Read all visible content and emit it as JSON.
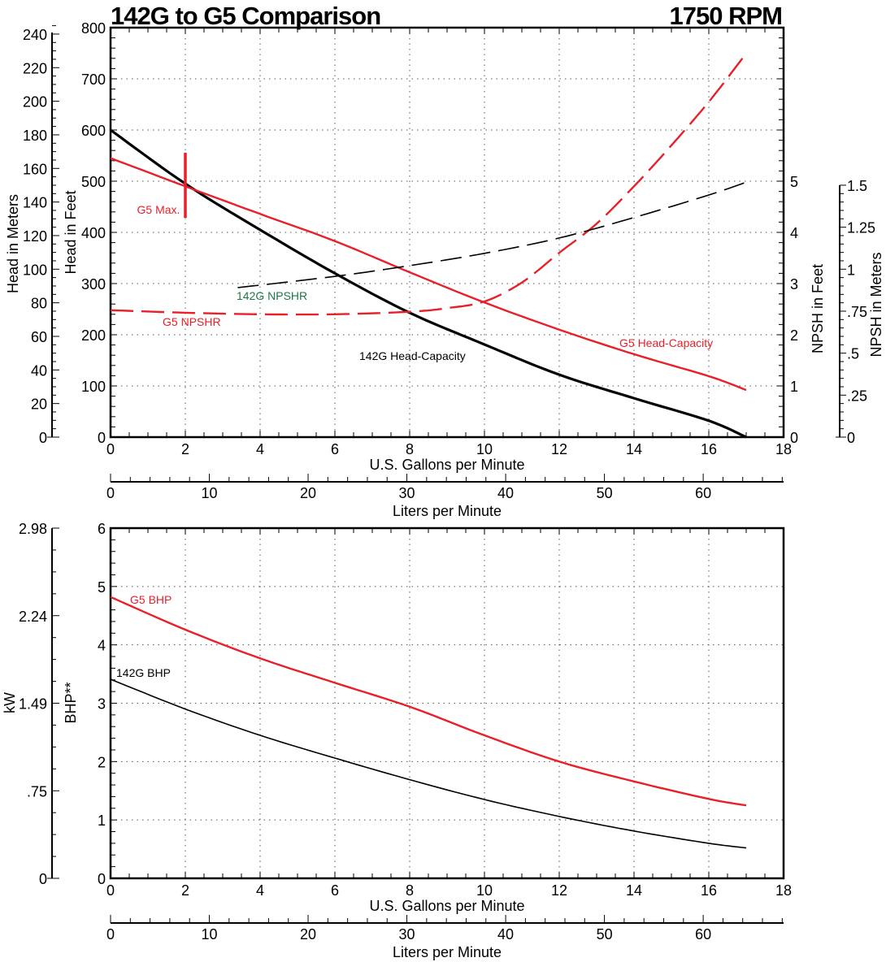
{
  "colors": {
    "g5": "#e8202a",
    "g142": "#000000",
    "npshr142": "#1a7a4a"
  },
  "chart_data": [
    {
      "type": "line",
      "title": "142G to G5 Comparison",
      "subtitle": "1750 RPM",
      "grid": true,
      "x_axis": {
        "label": "U.S. Gallons per Minute",
        "range": [
          0,
          18
        ],
        "tick_labels": [
          "0",
          "2",
          "4",
          "6",
          "8",
          "10",
          "12",
          "14",
          "16",
          "18"
        ]
      },
      "x2_axis": {
        "label": "Liters per Minute",
        "tick_labels": [
          "0",
          "10",
          "20",
          "30",
          "40",
          "50",
          "60"
        ]
      },
      "y_axis": {
        "label": "Head in Feet",
        "range": [
          0,
          800
        ],
        "tick_labels": [
          "0",
          "100",
          "200",
          "300",
          "400",
          "500",
          "600",
          "700",
          "800"
        ]
      },
      "y_meters_axis": {
        "label": "Head in Meters",
        "tick_labels": [
          "0",
          "20",
          "40",
          "60",
          "80",
          "100",
          "120",
          "140",
          "160",
          "180",
          "200",
          "220",
          "240"
        ]
      },
      "y_npsh_feet_axis": {
        "label": "NPSH in Feet",
        "range": [
          0,
          8
        ],
        "tick_labels": [
          "0",
          "1",
          "2",
          "3",
          "4",
          "5"
        ]
      },
      "y_npsh_meters_axis": {
        "label": "NPSH in Meters",
        "tick_labels": [
          "0",
          ".25",
          ".5",
          ".75",
          "1",
          "1.25",
          "1.5"
        ]
      },
      "series": [
        {
          "name": "142G Head-Capacity",
          "axis": "head_ft",
          "style": "solid-thick",
          "color_key": "g142",
          "x": [
            0,
            2,
            4,
            6,
            8,
            10,
            12,
            14,
            16,
            17
          ],
          "y": [
            600,
            495,
            405,
            320,
            243,
            181,
            122,
            76,
            32,
            0
          ]
        },
        {
          "name": "G5 Head-Capacity",
          "axis": "head_ft",
          "style": "solid",
          "color_key": "g5",
          "x": [
            0,
            2,
            4,
            6,
            8,
            10,
            12,
            14,
            16,
            17
          ],
          "y": [
            545,
            490,
            436,
            383,
            322,
            263,
            210,
            162,
            119,
            92
          ]
        },
        {
          "name": "G5 NPSHR",
          "axis": "npsh_ft",
          "style": "dashed",
          "color_key": "g5",
          "x": [
            0,
            2,
            4,
            6,
            8,
            9,
            10,
            11,
            12,
            13,
            14,
            15,
            16,
            16.9
          ],
          "y": [
            2.48,
            2.43,
            2.4,
            2.4,
            2.45,
            2.52,
            2.65,
            3.02,
            3.6,
            4.17,
            4.9,
            5.7,
            6.55,
            7.4
          ]
        },
        {
          "name": "142G NPSHR",
          "axis": "npsh_ft",
          "style": "dashed-thin",
          "color_key": "g142",
          "label_color_key": "npshr142",
          "x": [
            3.4,
            6,
            8,
            10,
            12,
            14,
            16,
            17
          ],
          "y": [
            2.92,
            3.14,
            3.35,
            3.59,
            3.89,
            4.29,
            4.73,
            4.98
          ]
        }
      ],
      "annotations": [
        {
          "text": "G5 Max.",
          "x": 2,
          "y": 492,
          "color_key": "g5"
        }
      ]
    },
    {
      "type": "line",
      "grid": true,
      "x_axis": {
        "label": "U.S. Gallons per Minute",
        "range": [
          0,
          18
        ],
        "tick_labels": [
          "0",
          "2",
          "4",
          "6",
          "8",
          "10",
          "12",
          "14",
          "16",
          "18"
        ]
      },
      "x2_axis": {
        "label": "Liters per Minute",
        "tick_labels": [
          "0",
          "10",
          "20",
          "30",
          "40",
          "50",
          "60"
        ]
      },
      "y_axis": {
        "label": "BHP**",
        "range": [
          0,
          6
        ],
        "tick_labels": [
          "0",
          "1",
          "2",
          "3",
          "4",
          "5",
          "6"
        ]
      },
      "y_kw_axis": {
        "label": "kW",
        "tick_labels": [
          "0",
          ".75",
          "1.49",
          "2.24",
          "2.98"
        ]
      },
      "series": [
        {
          "name": "G5 BHP",
          "style": "solid",
          "color_key": "g5",
          "x": [
            0,
            2,
            4,
            6,
            8,
            10,
            12,
            14,
            16,
            17
          ],
          "y": [
            4.82,
            4.26,
            3.77,
            3.35,
            2.94,
            2.45,
            2.0,
            1.66,
            1.36,
            1.25
          ]
        },
        {
          "name": "142G BHP",
          "style": "solid-thin",
          "color_key": "g142",
          "x": [
            0,
            2,
            4,
            6,
            8,
            10,
            12,
            14,
            16,
            17
          ],
          "y": [
            3.41,
            2.9,
            2.45,
            2.06,
            1.69,
            1.35,
            1.06,
            0.81,
            0.6,
            0.52
          ]
        }
      ]
    }
  ]
}
